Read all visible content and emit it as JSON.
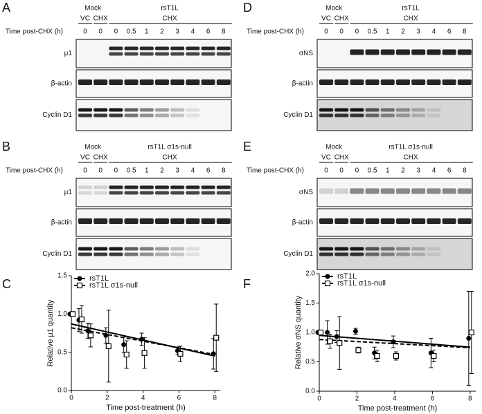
{
  "blots": [
    {
      "panel": "A",
      "mock": "Mock",
      "virus": "rsT1L",
      "lanes": [
        "VC",
        "CHX"
      ],
      "group": "CHX",
      "time_label": "Time post-CHX (h)",
      "times": [
        0,
        0,
        0,
        0.5,
        1,
        2,
        3,
        4,
        6,
        8
      ],
      "rows": [
        "μ1",
        "β-actin",
        "Cyclin D1"
      ]
    },
    {
      "panel": "B",
      "mock": "Mock",
      "virus": "rsT1L σ1s-null",
      "lanes": [
        "VC",
        "CHX"
      ],
      "group": "CHX",
      "time_label": "Time post-CHX (h)",
      "times": [
        0,
        0,
        0,
        0.5,
        1,
        2,
        3,
        4,
        6,
        8
      ],
      "rows": [
        "μ1",
        "β-actin",
        "Cyclin D1"
      ]
    },
    {
      "panel": "D",
      "mock": "Mock",
      "virus": "rsT1L",
      "lanes": [
        "VC",
        "CHX"
      ],
      "group": "CHX",
      "time_label": "Time post-CHX (h)",
      "times": [
        0,
        0,
        0,
        0.5,
        1,
        2,
        3,
        4,
        6,
        8
      ],
      "rows": [
        "σNS",
        "β-actin",
        "Cyclin D1"
      ]
    },
    {
      "panel": "E",
      "mock": "Mock",
      "virus": "rsT1L σ1s-null",
      "lanes": [
        "VC",
        "CHX"
      ],
      "group": "CHX",
      "time_label": "Time post-CHX (h)",
      "times": [
        0,
        0,
        0,
        0.5,
        1,
        2,
        3,
        4,
        6,
        8
      ],
      "rows": [
        "σNS",
        "β-actin",
        "Cyclin D1"
      ]
    }
  ],
  "chart_data": [
    {
      "type": "scatter",
      "panel": "C",
      "x_label": "Time post-treatment (h)",
      "y_label": "Relative μ1 quantity",
      "x": [
        0,
        0.5,
        1,
        2,
        3,
        4,
        6,
        8
      ],
      "xlim": [
        0,
        8.3
      ],
      "xticks": [
        0,
        2,
        4,
        6,
        8
      ],
      "ylim": [
        0,
        1.5
      ],
      "yticks": [
        {
          "value": 0,
          "label": "0.0"
        },
        {
          "value": 0.5,
          "label": "0.5"
        },
        {
          "value": 1,
          "label": "1.0"
        },
        {
          "value": 1.5,
          "label": "1.5"
        }
      ],
      "fit_x": [
        0,
        8
      ],
      "series": [
        {
          "name": "rsT1L",
          "color": "#000000",
          "marker": "circle",
          "dash": false,
          "values": [
            1.0,
            0.92,
            0.78,
            0.72,
            0.6,
            0.67,
            0.52,
            0.48
          ],
          "errors": [
            0,
            0.15,
            0.1,
            0.1,
            0.1,
            0.08,
            0.05,
            0.2
          ],
          "fit": [
            0.87,
            0.45
          ]
        },
        {
          "name": "rsT1L σ1s-null",
          "color": "#000000",
          "marker": "square",
          "dash": true,
          "values": [
            1.0,
            0.93,
            0.72,
            0.58,
            0.47,
            0.49,
            0.48,
            0.69
          ],
          "errors": [
            0,
            0.18,
            0.15,
            0.47,
            0.18,
            0.2,
            0.1,
            0.44
          ],
          "fit": [
            0.82,
            0.47
          ]
        }
      ]
    },
    {
      "type": "scatter",
      "panel": "F",
      "x_label": "Time post-treatment (h)",
      "y_label": "Relative σNS quantity",
      "x": [
        0,
        0.5,
        1,
        2,
        3,
        4,
        6,
        8
      ],
      "xlim": [
        0,
        8.3
      ],
      "xticks": [
        0,
        2,
        4,
        6,
        8
      ],
      "ylim": [
        0,
        2
      ],
      "yticks": [
        {
          "value": 0,
          "label": "0.0"
        },
        {
          "value": 0.5,
          "label": "0.5"
        },
        {
          "value": 1,
          "label": "1.0"
        },
        {
          "value": 1.5,
          "label": "1.5"
        },
        {
          "value": 2,
          "label": "2.0"
        }
      ],
      "fit_x": [
        0,
        8
      ],
      "series": [
        {
          "name": "rsT1L",
          "color": "#000000",
          "marker": "circle",
          "dash": false,
          "values": [
            1.0,
            1.0,
            0.93,
            1.02,
            0.65,
            0.84,
            0.65,
            0.9
          ],
          "errors": [
            0,
            0.2,
            0.1,
            0.05,
            0.1,
            0.1,
            0.25,
            0.8
          ],
          "fit": [
            0.95,
            0.75
          ]
        },
        {
          "name": "rsT1L σ1s-null",
          "color": "#000000",
          "marker": "square",
          "dash": true,
          "values": [
            1.0,
            0.85,
            0.82,
            0.7,
            0.6,
            0.6,
            0.6,
            1.0
          ],
          "errors": [
            0,
            0.12,
            0.45,
            0.05,
            0.1,
            0.07,
            0.1,
            0.7
          ],
          "fit": [
            0.88,
            0.74
          ]
        }
      ]
    }
  ]
}
